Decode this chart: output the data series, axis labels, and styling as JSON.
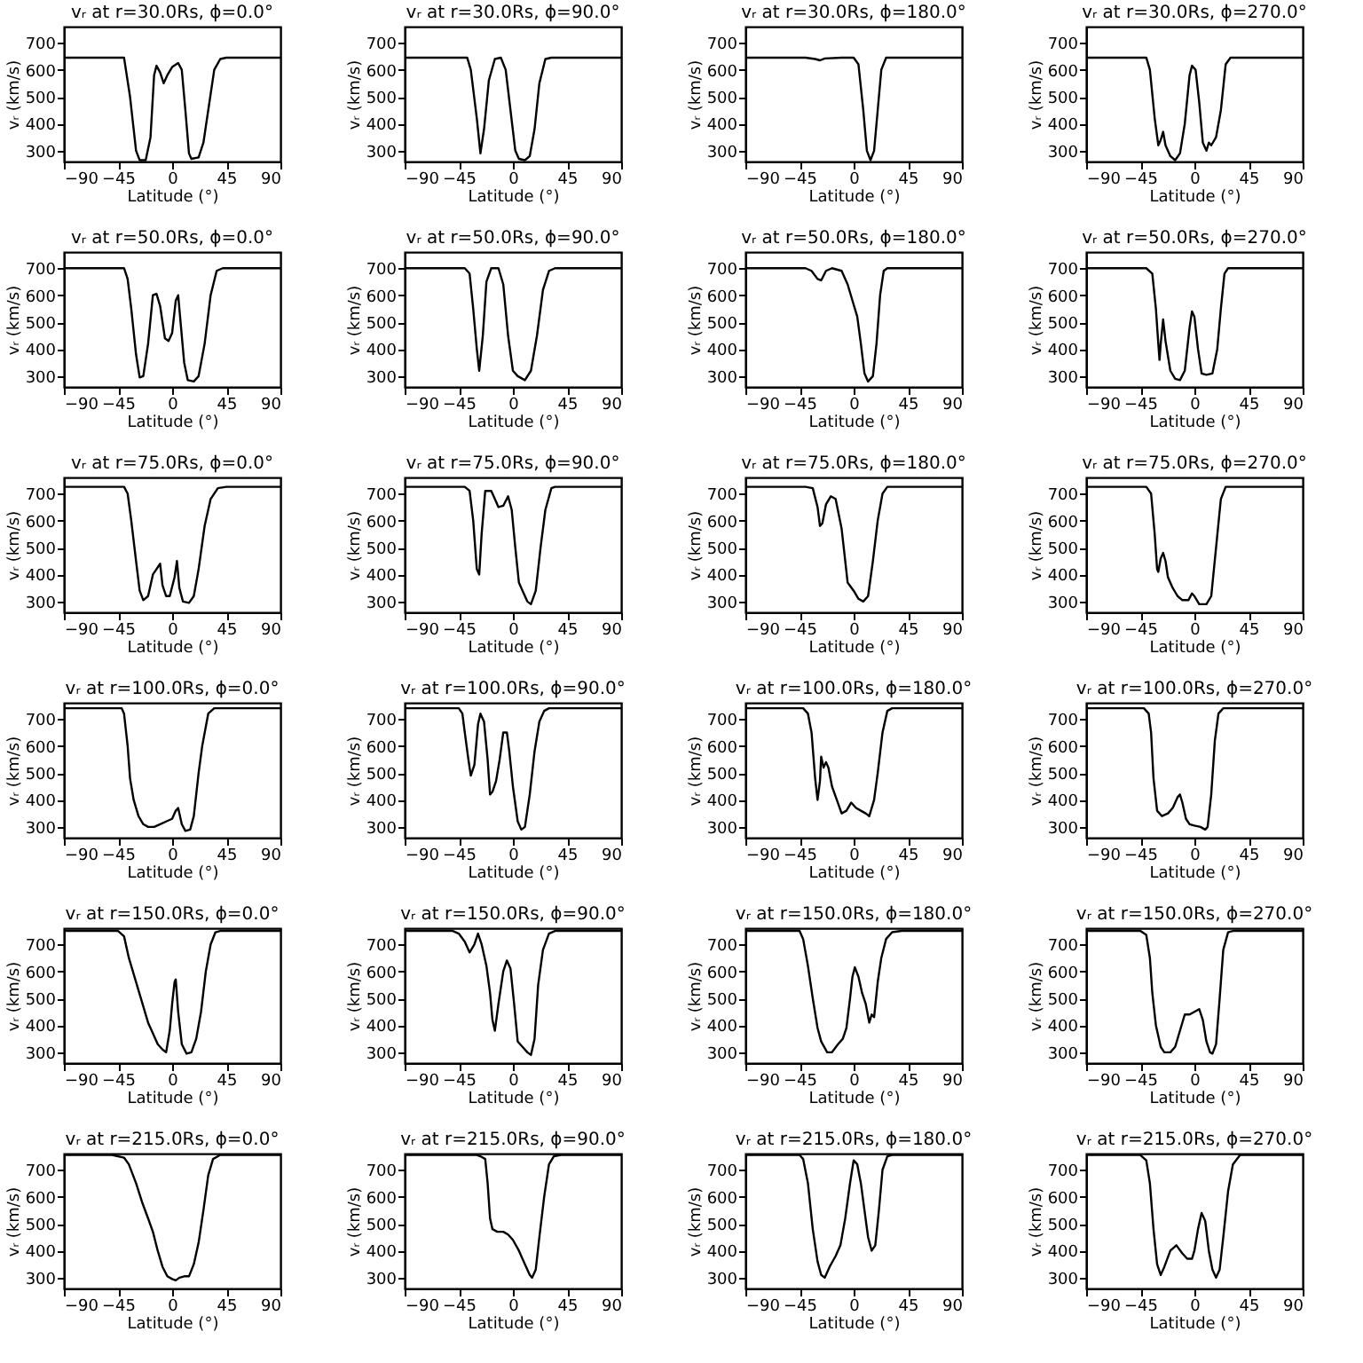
{
  "chart_data": [
    {
      "type": "line",
      "title": "vᵣ at r=30.0Rs, ϕ=0.0°",
      "xlabel": "Latitude (°)",
      "ylabel": "vᵣ (km/s)",
      "xlim": [
        -90,
        90
      ],
      "ylim": [
        260,
        760
      ],
      "xticks": [
        -90,
        -45,
        0,
        45,
        90
      ],
      "yticks": [
        300,
        400,
        500,
        600,
        700
      ],
      "color": "#000000",
      "x": [
        -90,
        -40,
        -35,
        -30,
        -27,
        -22,
        -18,
        -15,
        -13,
        -10,
        -7,
        -4,
        0,
        5,
        8,
        11,
        14,
        16,
        22,
        26,
        30,
        35,
        40,
        45,
        90
      ],
      "values": [
        645,
        645,
        500,
        300,
        265,
        265,
        350,
        580,
        615,
        590,
        550,
        580,
        610,
        625,
        600,
        450,
        290,
        270,
        275,
        330,
        450,
        600,
        640,
        645,
        645
      ]
    },
    {
      "type": "line",
      "title": "vᵣ at r=30.0Rs, ϕ=90.0°",
      "xlabel": "Latitude (°)",
      "ylabel": "vᵣ (km/s)",
      "xlim": [
        -90,
        90
      ],
      "ylim": [
        260,
        760
      ],
      "xticks": [
        -90,
        -45,
        0,
        45,
        90
      ],
      "yticks": [
        300,
        400,
        500,
        600,
        700
      ],
      "color": "#000000",
      "x": [
        -90,
        -38,
        -35,
        -30,
        -27,
        -24,
        -20,
        -15,
        -10,
        -6,
        -2,
        2,
        5,
        10,
        14,
        18,
        22,
        27,
        32,
        90
      ],
      "values": [
        645,
        645,
        600,
        420,
        290,
        380,
        560,
        640,
        645,
        600,
        450,
        300,
        270,
        265,
        280,
        380,
        550,
        640,
        645,
        645
      ]
    },
    {
      "type": "line",
      "title": "vᵣ at r=30.0Rs, ϕ=180.0°",
      "xlabel": "Latitude (°)",
      "ylabel": "vᵣ (km/s)",
      "xlim": [
        -90,
        90
      ],
      "ylim": [
        260,
        760
      ],
      "xticks": [
        -90,
        -45,
        0,
        45,
        90
      ],
      "yticks": [
        300,
        400,
        500,
        600,
        700
      ],
      "color": "#000000",
      "x": [
        -90,
        -40,
        -32,
        -28,
        -24,
        -10,
        0,
        4,
        8,
        11,
        14,
        17,
        20,
        23,
        27,
        90
      ],
      "values": [
        645,
        645,
        640,
        635,
        642,
        645,
        645,
        620,
        450,
        300,
        265,
        300,
        450,
        600,
        645,
        645
      ]
    },
    {
      "type": "line",
      "title": "vᵣ at r=30.0Rs, ϕ=270.0°",
      "xlabel": "Latitude (°)",
      "ylabel": "vᵣ (km/s)",
      "xlim": [
        -90,
        90
      ],
      "ylim": [
        260,
        760
      ],
      "xticks": [
        -90,
        -45,
        0,
        45,
        90
      ],
      "yticks": [
        300,
        400,
        500,
        600,
        700
      ],
      "color": "#000000",
      "x": [
        -90,
        -40,
        -37,
        -33,
        -30,
        -28,
        -26,
        -24,
        -20,
        -16,
        -12,
        -8,
        -4,
        -2,
        1,
        4,
        7,
        10,
        12,
        14,
        18,
        22,
        26,
        30,
        90
      ],
      "values": [
        645,
        645,
        600,
        420,
        320,
        340,
        370,
        320,
        280,
        265,
        290,
        400,
        580,
        615,
        600,
        480,
        330,
        300,
        330,
        320,
        350,
        450,
        620,
        645,
        645
      ]
    },
    {
      "type": "line",
      "title": "vᵣ at r=50.0Rs, ϕ=0.0°",
      "xlabel": "Latitude (°)",
      "ylabel": "vᵣ (km/s)",
      "xlim": [
        -90,
        90
      ],
      "ylim": [
        260,
        760
      ],
      "xticks": [
        -90,
        -45,
        0,
        45,
        90
      ],
      "yticks": [
        300,
        400,
        500,
        600,
        700
      ],
      "color": "#000000",
      "x": [
        -90,
        -40,
        -37,
        -34,
        -30,
        -27,
        -24,
        -20,
        -16,
        -13,
        -10,
        -6,
        -3,
        0,
        3,
        5,
        7,
        10,
        13,
        18,
        22,
        27,
        32,
        37,
        42,
        90
      ],
      "values": [
        700,
        700,
        660,
        550,
        380,
        295,
        300,
        420,
        600,
        605,
        560,
        440,
        430,
        460,
        580,
        600,
        500,
        350,
        285,
        280,
        300,
        420,
        600,
        690,
        700,
        700
      ]
    },
    {
      "type": "line",
      "title": "vᵣ at r=50.0Rs, ϕ=90.0°",
      "xlabel": "Latitude (°)",
      "ylabel": "vᵣ (km/s)",
      "xlim": [
        -90,
        90
      ],
      "ylim": [
        260,
        760
      ],
      "xticks": [
        -90,
        -45,
        0,
        45,
        90
      ],
      "yticks": [
        300,
        400,
        500,
        600,
        700
      ],
      "color": "#000000",
      "x": [
        -90,
        -40,
        -36,
        -33,
        -30,
        -28,
        -25,
        -22,
        -18,
        -12,
        -8,
        -4,
        0,
        4,
        10,
        15,
        20,
        25,
        30,
        35,
        90
      ],
      "values": [
        700,
        700,
        680,
        550,
        400,
        320,
        450,
        650,
        700,
        700,
        640,
        450,
        320,
        300,
        285,
        320,
        450,
        620,
        690,
        700,
        700
      ]
    },
    {
      "type": "line",
      "title": "vᵣ at r=50.0Rs, ϕ=180.0°",
      "xlabel": "Latitude (°)",
      "ylabel": "vᵣ (km/s)",
      "xlim": [
        -90,
        90
      ],
      "ylim": [
        260,
        760
      ],
      "xticks": [
        -90,
        -45,
        0,
        45,
        90
      ],
      "yticks": [
        300,
        400,
        500,
        600,
        700
      ],
      "color": "#000000",
      "x": [
        -90,
        -40,
        -35,
        -30,
        -27,
        -23,
        -18,
        -10,
        -5,
        -1,
        3,
        6,
        9,
        12,
        16,
        19,
        22,
        25,
        28,
        90
      ],
      "values": [
        700,
        700,
        690,
        660,
        655,
        690,
        700,
        690,
        640,
        580,
        520,
        420,
        310,
        280,
        300,
        420,
        600,
        690,
        700,
        700
      ]
    },
    {
      "type": "line",
      "title": "vᵣ at r=50.0Rs, ϕ=270.0°",
      "xlabel": "Latitude (°)",
      "ylabel": "vᵣ (km/s)",
      "xlim": [
        -90,
        90
      ],
      "ylim": [
        260,
        760
      ],
      "xticks": [
        -90,
        -45,
        0,
        45,
        90
      ],
      "yticks": [
        300,
        400,
        500,
        600,
        700
      ],
      "color": "#000000",
      "x": [
        -90,
        -40,
        -35,
        -32,
        -30,
        -29,
        -28,
        -26,
        -24,
        -20,
        -16,
        -12,
        -8,
        -4,
        -2,
        0,
        3,
        6,
        10,
        15,
        19,
        22,
        25,
        28,
        90
      ],
      "values": [
        700,
        700,
        680,
        550,
        420,
        360,
        420,
        510,
        430,
        320,
        290,
        285,
        320,
        480,
        540,
        520,
        400,
        310,
        305,
        310,
        400,
        550,
        680,
        700,
        700
      ]
    },
    {
      "type": "line",
      "title": "vᵣ at r=75.0Rs, ϕ=0.0°",
      "xlabel": "Latitude (°)",
      "ylabel": "vᵣ (km/s)",
      "xlim": [
        -90,
        90
      ],
      "ylim": [
        260,
        760
      ],
      "xticks": [
        -90,
        -45,
        0,
        45,
        90
      ],
      "yticks": [
        300,
        400,
        500,
        600,
        700
      ],
      "color": "#000000",
      "x": [
        -90,
        -40,
        -37,
        -34,
        -30,
        -27,
        -24,
        -20,
        -16,
        -13,
        -10,
        -8,
        -5,
        -2,
        2,
        4,
        6,
        9,
        14,
        18,
        22,
        27,
        32,
        38,
        45,
        90
      ],
      "values": [
        725,
        725,
        700,
        600,
        450,
        340,
        305,
        320,
        400,
        420,
        440,
        360,
        320,
        320,
        390,
        450,
        350,
        300,
        295,
        320,
        420,
        580,
        680,
        720,
        725,
        725
      ]
    },
    {
      "type": "line",
      "title": "vᵣ at r=75.0Rs, ϕ=90.0°",
      "xlabel": "Latitude (°)",
      "ylabel": "vᵣ (km/s)",
      "xlim": [
        -90,
        90
      ],
      "ylim": [
        260,
        760
      ],
      "xticks": [
        -90,
        -45,
        0,
        45,
        90
      ],
      "yticks": [
        300,
        400,
        500,
        600,
        700
      ],
      "color": "#000000",
      "x": [
        -90,
        -40,
        -36,
        -33,
        -30,
        -28,
        -26,
        -23,
        -18,
        -15,
        -12,
        -8,
        -4,
        -1,
        2,
        5,
        8,
        12,
        15,
        19,
        23,
        27,
        32,
        35,
        90
      ],
      "values": [
        725,
        725,
        710,
        600,
        420,
        400,
        550,
        710,
        710,
        680,
        650,
        655,
        690,
        640,
        500,
        370,
        340,
        300,
        290,
        340,
        500,
        640,
        720,
        725,
        725
      ]
    },
    {
      "type": "line",
      "title": "vᵣ at r=75.0Rs, ϕ=180.0°",
      "xlabel": "Latitude (°)",
      "ylabel": "vᵣ (km/s)",
      "xlim": [
        -90,
        90
      ],
      "ylim": [
        260,
        760
      ],
      "xticks": [
        -90,
        -45,
        0,
        45,
        90
      ],
      "yticks": [
        300,
        400,
        500,
        600,
        700
      ],
      "color": "#000000",
      "x": [
        -90,
        -40,
        -34,
        -30,
        -28,
        -26,
        -23,
        -19,
        -15,
        -10,
        -7,
        -5,
        0,
        4,
        8,
        12,
        16,
        20,
        24,
        28,
        90
      ],
      "values": [
        725,
        725,
        720,
        650,
        580,
        590,
        660,
        690,
        680,
        570,
        450,
        370,
        340,
        310,
        300,
        320,
        450,
        600,
        700,
        725,
        725
      ]
    },
    {
      "type": "line",
      "title": "vᵣ at r=75.0Rs, ϕ=270.0°",
      "xlabel": "Latitude (°)",
      "ylabel": "vᵣ (km/s)",
      "xlim": [
        -90,
        90
      ],
      "ylim": [
        260,
        760
      ],
      "xticks": [
        -90,
        -45,
        0,
        45,
        90
      ],
      "yticks": [
        300,
        400,
        500,
        600,
        700
      ],
      "color": "#000000",
      "x": [
        -90,
        -40,
        -36,
        -33,
        -31,
        -30,
        -28,
        -26,
        -24,
        -22,
        -18,
        -14,
        -10,
        -5,
        -2,
        0,
        4,
        10,
        14,
        18,
        22,
        26,
        90
      ],
      "values": [
        725,
        725,
        700,
        550,
        420,
        410,
        460,
        480,
        450,
        390,
        350,
        320,
        305,
        305,
        330,
        320,
        290,
        290,
        320,
        500,
        680,
        725,
        725
      ]
    },
    {
      "type": "line",
      "title": "vᵣ at r=100.0Rs, ϕ=0.0°",
      "xlabel": "Latitude (°)",
      "ylabel": "vᵣ (km/s)",
      "xlim": [
        -90,
        90
      ],
      "ylim": [
        260,
        760
      ],
      "xticks": [
        -90,
        -45,
        0,
        45,
        90
      ],
      "yticks": [
        300,
        400,
        500,
        600,
        700
      ],
      "color": "#000000",
      "x": [
        -90,
        -42,
        -40,
        -37,
        -35,
        -32,
        -28,
        -24,
        -20,
        -15,
        -10,
        -5,
        0,
        3,
        5,
        8,
        11,
        15,
        18,
        22,
        25,
        30,
        35,
        90
      ],
      "values": [
        740,
        740,
        720,
        600,
        480,
        400,
        340,
        310,
        300,
        300,
        310,
        320,
        330,
        360,
        370,
        310,
        285,
        290,
        340,
        500,
        600,
        720,
        740,
        740
      ]
    },
    {
      "type": "line",
      "title": "vᵣ at r=100.0Rs, ϕ=90.0°",
      "xlabel": "Latitude (°)",
      "ylabel": "vᵣ (km/s)",
      "xlim": [
        -90,
        90
      ],
      "ylim": [
        260,
        760
      ],
      "xticks": [
        -90,
        -45,
        0,
        45,
        90
      ],
      "yticks": [
        300,
        400,
        500,
        600,
        700
      ],
      "color": "#000000",
      "x": [
        -90,
        -45,
        -42,
        -40,
        -37,
        -35,
        -32,
        -29,
        -27,
        -24,
        -21,
        -19,
        -17,
        -14,
        -11,
        -8,
        -5,
        -3,
        0,
        4,
        7,
        10,
        14,
        18,
        22,
        26,
        30,
        90
      ],
      "values": [
        740,
        740,
        720,
        650,
        550,
        490,
        530,
        680,
        720,
        690,
        550,
        420,
        430,
        470,
        550,
        650,
        650,
        580,
        450,
        320,
        290,
        300,
        420,
        580,
        690,
        730,
        740,
        740
      ]
    },
    {
      "type": "line",
      "title": "vᵣ at r=100.0Rs, ϕ=180.0°",
      "xlabel": "Latitude (°)",
      "ylabel": "vᵣ (km/s)",
      "xlim": [
        -90,
        90
      ],
      "ylim": [
        260,
        760
      ],
      "xticks": [
        -90,
        -45,
        0,
        45,
        90
      ],
      "yticks": [
        300,
        400,
        500,
        600,
        700
      ],
      "color": "#000000",
      "x": [
        -90,
        -42,
        -38,
        -35,
        -32,
        -30,
        -28,
        -27,
        -25,
        -23,
        -21,
        -18,
        -14,
        -10,
        -6,
        -2,
        2,
        6,
        10,
        13,
        17,
        20,
        24,
        28,
        32,
        90
      ],
      "values": [
        740,
        740,
        720,
        650,
        480,
        400,
        470,
        560,
        520,
        540,
        520,
        450,
        400,
        350,
        360,
        390,
        370,
        360,
        350,
        340,
        400,
        500,
        650,
        730,
        740,
        740
      ]
    },
    {
      "type": "line",
      "title": "vᵣ at r=100.0Rs, ϕ=270.0°",
      "xlabel": "Latitude (°)",
      "ylabel": "vᵣ (km/s)",
      "xlim": [
        -90,
        90
      ],
      "ylim": [
        260,
        760
      ],
      "xticks": [
        -90,
        -45,
        0,
        45,
        90
      ],
      "yticks": [
        300,
        400,
        500,
        600,
        700
      ],
      "color": "#000000",
      "x": [
        -90,
        -42,
        -38,
        -36,
        -34,
        -31,
        -27,
        -22,
        -18,
        -14,
        -12,
        -10,
        -7,
        -4,
        0,
        5,
        9,
        11,
        14,
        17,
        20,
        24,
        90
      ],
      "values": [
        740,
        740,
        720,
        650,
        480,
        360,
        340,
        350,
        370,
        410,
        420,
        390,
        330,
        310,
        305,
        300,
        290,
        300,
        420,
        620,
        720,
        740,
        740
      ]
    },
    {
      "type": "line",
      "title": "vᵣ at r=150.0Rs, ϕ=0.0°",
      "xlabel": "Latitude (°)",
      "ylabel": "vᵣ (km/s)",
      "xlim": [
        -90,
        90
      ],
      "ylim": [
        260,
        760
      ],
      "xticks": [
        -90,
        -45,
        0,
        45,
        90
      ],
      "yticks": [
        300,
        400,
        500,
        600,
        700
      ],
      "color": "#000000",
      "x": [
        -90,
        -45,
        -40,
        -36,
        -32,
        -28,
        -24,
        -20,
        -16,
        -12,
        -8,
        -5,
        -2,
        0,
        2,
        3,
        5,
        8,
        12,
        16,
        20,
        24,
        28,
        32,
        36,
        40,
        90
      ],
      "values": [
        750,
        750,
        730,
        650,
        590,
        530,
        470,
        410,
        370,
        330,
        310,
        300,
        380,
        480,
        560,
        570,
        450,
        330,
        295,
        300,
        350,
        450,
        600,
        700,
        745,
        750,
        750
      ]
    },
    {
      "type": "line",
      "title": "vᵣ at r=150.0Rs, ϕ=90.0°",
      "xlabel": "Latitude (°)",
      "ylabel": "vᵣ (km/s)",
      "xlim": [
        -90,
        90
      ],
      "ylim": [
        260,
        760
      ],
      "xticks": [
        -90,
        -45,
        0,
        45,
        90
      ],
      "yticks": [
        300,
        400,
        500,
        600,
        700
      ],
      "color": "#000000",
      "x": [
        -90,
        -50,
        -45,
        -40,
        -36,
        -32,
        -29,
        -26,
        -22,
        -19,
        -17,
        -15,
        -12,
        -8,
        -5,
        -2,
        1,
        4,
        8,
        12,
        15,
        18,
        21,
        25,
        30,
        35,
        90
      ],
      "values": [
        750,
        750,
        740,
        710,
        670,
        700,
        740,
        700,
        620,
        520,
        420,
        380,
        480,
        600,
        640,
        610,
        480,
        340,
        320,
        300,
        290,
        350,
        550,
        680,
        740,
        750,
        750
      ]
    },
    {
      "type": "line",
      "title": "vᵣ at r=150.0Rs, ϕ=180.0°",
      "xlabel": "Latitude (°)",
      "ylabel": "vᵣ (km/s)",
      "xlim": [
        -90,
        90
      ],
      "ylim": [
        260,
        760
      ],
      "xticks": [
        -90,
        -45,
        0,
        45,
        90
      ],
      "yticks": [
        300,
        400,
        500,
        600,
        700
      ],
      "color": "#000000",
      "x": [
        -90,
        -45,
        -42,
        -38,
        -34,
        -30,
        -27,
        -22,
        -18,
        -13,
        -9,
        -6,
        -3,
        -1,
        1,
        4,
        7,
        10,
        13,
        15,
        17,
        20,
        23,
        27,
        32,
        40,
        90
      ],
      "values": [
        750,
        750,
        720,
        620,
        500,
        390,
        340,
        300,
        300,
        330,
        350,
        390,
        500,
        580,
        615,
        580,
        520,
        480,
        410,
        440,
        430,
        560,
        650,
        720,
        745,
        750,
        750
      ]
    },
    {
      "type": "line",
      "title": "vᵣ at r=150.0Rs, ϕ=270.0°",
      "xlabel": "Latitude (°)",
      "ylabel": "vᵣ (km/s)",
      "xlim": [
        -90,
        90
      ],
      "ylim": [
        260,
        760
      ],
      "xticks": [
        -90,
        -45,
        0,
        45,
        90
      ],
      "yticks": [
        300,
        400,
        500,
        600,
        700
      ],
      "color": "#000000",
      "x": [
        -90,
        -45,
        -40,
        -37,
        -35,
        -32,
        -28,
        -25,
        -20,
        -16,
        -12,
        -8,
        -4,
        0,
        4,
        7,
        10,
        13,
        15,
        18,
        21,
        24,
        28,
        32,
        90
      ],
      "values": [
        750,
        750,
        735,
        650,
        520,
        400,
        320,
        300,
        300,
        320,
        380,
        440,
        440,
        450,
        460,
        420,
        340,
        300,
        295,
        330,
        500,
        680,
        745,
        750,
        750
      ]
    },
    {
      "type": "line",
      "title": "vᵣ at r=215.0Rs, ϕ=0.0°",
      "xlabel": "Latitude (°)",
      "ylabel": "vᵣ (km/s)",
      "xlim": [
        -90,
        90
      ],
      "ylim": [
        260,
        760
      ],
      "xticks": [
        -90,
        -45,
        0,
        45,
        90
      ],
      "yticks": [
        300,
        400,
        500,
        600,
        700
      ],
      "color": "#000000",
      "x": [
        -90,
        -50,
        -40,
        -36,
        -30,
        -25,
        -20,
        -16,
        -12,
        -8,
        -4,
        0,
        3,
        6,
        10,
        14,
        18,
        22,
        26,
        30,
        34,
        40,
        90
      ],
      "values": [
        755,
        755,
        745,
        720,
        650,
        580,
        520,
        470,
        400,
        340,
        305,
        295,
        290,
        300,
        305,
        305,
        350,
        430,
        550,
        680,
        740,
        755,
        755
      ]
    },
    {
      "type": "line",
      "title": "vᵣ at r=215.0Rs, ϕ=90.0°",
      "xlabel": "Latitude (°)",
      "ylabel": "vᵣ (km/s)",
      "xlim": [
        -90,
        90
      ],
      "ylim": [
        260,
        760
      ],
      "xticks": [
        -90,
        -45,
        0,
        45,
        90
      ],
      "yticks": [
        300,
        400,
        500,
        600,
        700
      ],
      "color": "#000000",
      "x": [
        -90,
        -30,
        -27,
        -23,
        -21,
        -19,
        -17,
        -13,
        -8,
        -4,
        0,
        5,
        10,
        14,
        16,
        19,
        22,
        26,
        30,
        34,
        40,
        90
      ],
      "values": [
        755,
        755,
        750,
        740,
        650,
        520,
        480,
        470,
        470,
        460,
        440,
        400,
        350,
        310,
        300,
        330,
        450,
        600,
        720,
        750,
        755,
        755
      ]
    },
    {
      "type": "line",
      "title": "vᵣ at r=215.0Rs, ϕ=180.0°",
      "xlabel": "Latitude (°)",
      "ylabel": "vᵣ (km/s)",
      "xlim": [
        -90,
        90
      ],
      "ylim": [
        260,
        760
      ],
      "xticks": [
        -90,
        -45,
        0,
        45,
        90
      ],
      "yticks": [
        300,
        400,
        500,
        600,
        700
      ],
      "color": "#000000",
      "x": [
        -90,
        -45,
        -42,
        -38,
        -34,
        -30,
        -27,
        -24,
        -20,
        -15,
        -11,
        -7,
        -3,
        0,
        3,
        6,
        9,
        12,
        15,
        18,
        21,
        24,
        28,
        32,
        90
      ],
      "values": [
        755,
        755,
        740,
        650,
        480,
        360,
        310,
        300,
        340,
        380,
        420,
        520,
        650,
        735,
        720,
        650,
        550,
        450,
        400,
        420,
        550,
        700,
        750,
        755,
        755
      ]
    },
    {
      "type": "line",
      "title": "vᵣ at r=215.0Rs, ϕ=270.0°",
      "xlabel": "Latitude (°)",
      "ylabel": "vᵣ (km/s)",
      "xlim": [
        -90,
        90
      ],
      "ylim": [
        260,
        760
      ],
      "xticks": [
        -90,
        -45,
        0,
        45,
        90
      ],
      "yticks": [
        300,
        400,
        500,
        600,
        700
      ],
      "color": "#000000",
      "x": [
        -90,
        -45,
        -40,
        -37,
        -34,
        -31,
        -28,
        -25,
        -20,
        -15,
        -10,
        -6,
        -2,
        0,
        3,
        6,
        9,
        12,
        15,
        18,
        21,
        24,
        28,
        32,
        38,
        90
      ],
      "values": [
        755,
        755,
        735,
        650,
        480,
        350,
        310,
        340,
        400,
        420,
        390,
        370,
        370,
        400,
        480,
        540,
        510,
        400,
        330,
        300,
        330,
        450,
        620,
        720,
        755,
        755
      ]
    }
  ]
}
